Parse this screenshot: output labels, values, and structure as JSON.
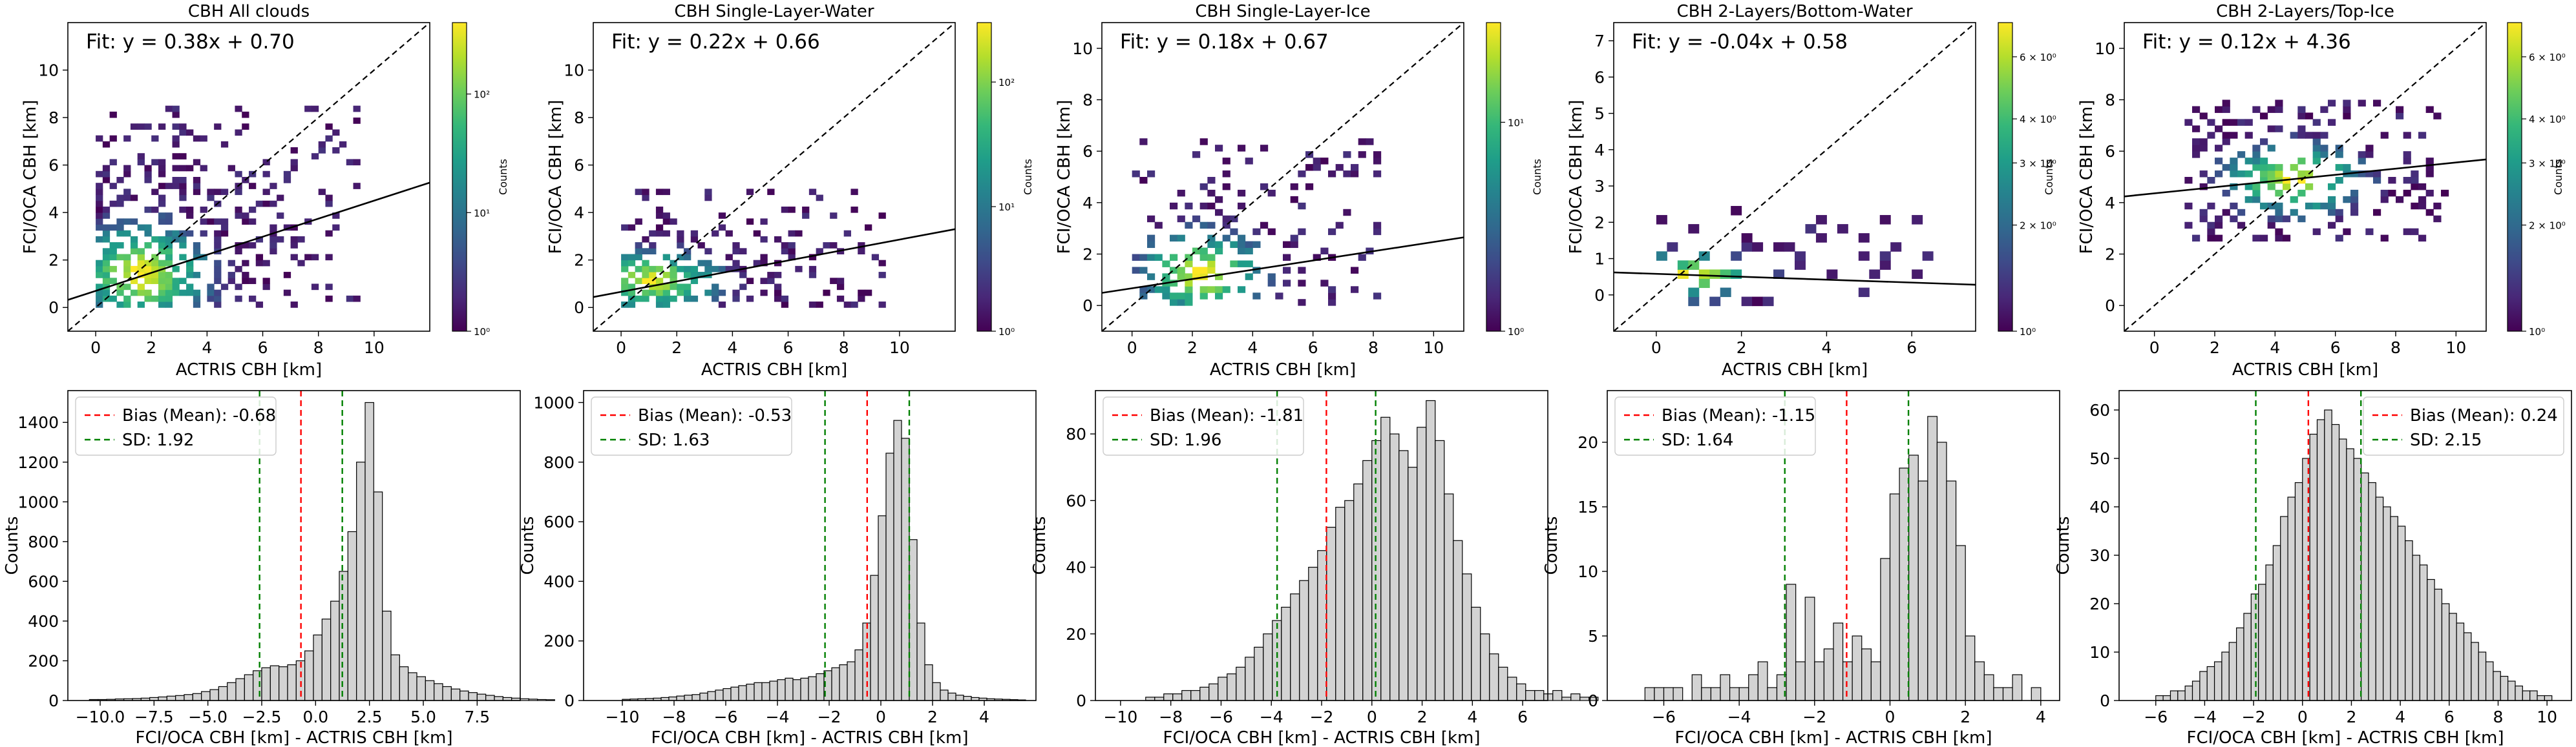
{
  "chart_data": [
    {
      "type": "heatmap",
      "title": "CBH All clouds",
      "xlabel": "ACTRIS CBH [km]",
      "ylabel": "FCI/OCA CBH [km]",
      "xlim": [
        -1,
        12
      ],
      "ylim": [
        -1,
        12
      ],
      "xticks": [
        0,
        2,
        4,
        6,
        8,
        10
      ],
      "yticks": [
        0,
        2,
        4,
        6,
        8,
        10
      ],
      "fit_label": "Fit: y = 0.38x + 0.70",
      "fit": {
        "slope": 0.38,
        "intercept": 0.7
      },
      "identity_line": true,
      "colorbar": {
        "label": "Counts",
        "scale": "log",
        "range": [
          1,
          400
        ],
        "ticks": [
          "10⁰",
          "10¹",
          "10²"
        ]
      },
      "density": {
        "x_range": [
          0,
          9.5
        ],
        "y_range": [
          0,
          8.3
        ],
        "x_center": 1.5,
        "y_center": 1.3,
        "coverage": 0.85
      }
    },
    {
      "type": "heatmap",
      "title": "CBH Single-Layer-Water",
      "xlabel": "ACTRIS CBH [km]",
      "ylabel": "FCI/OCA CBH [km]",
      "xlim": [
        -1,
        12
      ],
      "ylim": [
        -1,
        12
      ],
      "xticks": [
        0,
        2,
        4,
        6,
        8,
        10
      ],
      "yticks": [
        0,
        2,
        4,
        6,
        8,
        10
      ],
      "fit_label": "Fit: y = 0.22x + 0.66",
      "fit": {
        "slope": 0.22,
        "intercept": 0.66
      },
      "identity_line": true,
      "colorbar": {
        "label": "Counts",
        "scale": "log",
        "range": [
          1,
          300
        ],
        "ticks": [
          "10⁰",
          "10¹",
          "10²"
        ]
      },
      "density": {
        "x_range": [
          0,
          9.5
        ],
        "y_range": [
          0,
          4.8
        ],
        "x_center": 1.0,
        "y_center": 1.0,
        "coverage": 0.7
      }
    },
    {
      "type": "heatmap",
      "title": "CBH Single-Layer-Ice",
      "xlabel": "ACTRIS CBH [km]",
      "ylabel": "FCI/OCA CBH [km]",
      "xlim": [
        -1,
        11
      ],
      "ylim": [
        -1,
        11
      ],
      "xticks": [
        0,
        2,
        4,
        6,
        8,
        10
      ],
      "yticks": [
        0,
        2,
        4,
        6,
        8,
        10
      ],
      "fit_label": "Fit: y = 0.18x + 0.67",
      "fit": {
        "slope": 0.18,
        "intercept": 0.67
      },
      "identity_line": true,
      "colorbar": {
        "label": "Counts",
        "scale": "log",
        "range": [
          1,
          30
        ],
        "ticks": [
          "10⁰",
          "10¹"
        ]
      },
      "density": {
        "x_range": [
          0,
          8.2
        ],
        "y_range": [
          0,
          6.5
        ],
        "x_center": 2.2,
        "y_center": 1.1,
        "coverage": 0.55
      }
    },
    {
      "type": "heatmap",
      "title": "CBH 2-Layers/Bottom-Water",
      "xlabel": "ACTRIS CBH [km]",
      "ylabel": "FCI/OCA CBH [km]",
      "xlim": [
        -1,
        7.5
      ],
      "ylim": [
        -1,
        7.5
      ],
      "xticks": [
        0,
        2,
        4,
        6
      ],
      "yticks": [
        0,
        1,
        2,
        3,
        4,
        5,
        6,
        7
      ],
      "fit_label": "Fit: y = -0.04x + 0.58",
      "fit": {
        "slope": -0.04,
        "intercept": 0.58
      },
      "identity_line": true,
      "colorbar": {
        "label": "Counts",
        "scale": "log",
        "range": [
          1,
          7.5
        ],
        "ticks": [
          "10⁰",
          "2 × 10⁰",
          "3 × 10⁰",
          "4 × 10⁰",
          "6 × 10⁰"
        ]
      },
      "density": {
        "x_range": [
          0,
          6.5
        ],
        "y_range": [
          -0.3,
          2.3
        ],
        "x_center": 0.6,
        "y_center": 0.4,
        "coverage": 0.35
      }
    },
    {
      "type": "heatmap",
      "title": "CBH 2-Layers/Top-Ice",
      "xlabel": "ACTRIS CBH [km]",
      "ylabel": "FCI/OCA CBH [km]",
      "xlim": [
        -1,
        11
      ],
      "ylim": [
        -1,
        11
      ],
      "xticks": [
        0,
        2,
        4,
        6,
        8,
        10
      ],
      "yticks": [
        0,
        2,
        4,
        6,
        8,
        10
      ],
      "fit_label": "Fit: y = 0.12x + 4.36",
      "fit": {
        "slope": 0.12,
        "intercept": 4.36
      },
      "identity_line": true,
      "colorbar": {
        "label": "Counts",
        "scale": "log",
        "range": [
          1,
          7.5
        ],
        "ticks": [
          "10⁰",
          "2 × 10⁰",
          "3 × 10⁰",
          "4 × 10⁰",
          "6 × 10⁰"
        ]
      },
      "density": {
        "x_range": [
          1,
          9.8
        ],
        "y_range": [
          2.5,
          7.8
        ],
        "x_center": 4.5,
        "y_center": 4.8,
        "coverage": 0.55
      }
    },
    {
      "type": "bar",
      "subtype": "histogram",
      "xlabel": "FCI/OCA CBH [km] - ACTRIS CBH [km]",
      "ylabel": "Counts",
      "xlim": [
        -11.5,
        9.5
      ],
      "ylim": [
        0,
        1560
      ],
      "xticks": [
        -10.0,
        -7.5,
        -5.0,
        -2.5,
        0.0,
        2.5,
        5.0,
        7.5
      ],
      "xtick_labels": [
        "−10.0",
        "−7.5",
        "−5.0",
        "−2.5",
        "0.0",
        "2.5",
        "5.0",
        "7.5"
      ],
      "yticks": [
        0,
        200,
        400,
        600,
        800,
        1000,
        1200,
        1400
      ],
      "legend": {
        "position": "top-left",
        "bias_label": "Bias (Mean): -0.68",
        "sd_label": "SD: 1.92"
      },
      "bias": -0.68,
      "sd_lines": [
        -2.6,
        1.24
      ],
      "bin_start": -10.5,
      "bin_width": 0.4,
      "counts": [
        5,
        5,
        6,
        8,
        9,
        10,
        12,
        15,
        18,
        22,
        25,
        30,
        35,
        45,
        55,
        70,
        90,
        110,
        130,
        150,
        165,
        175,
        170,
        180,
        200,
        250,
        330,
        410,
        500,
        650,
        850,
        1200,
        1500,
        1050,
        450,
        230,
        170,
        140,
        120,
        100,
        85,
        70,
        58,
        48,
        40,
        32,
        26,
        20,
        15,
        12,
        9,
        7,
        5,
        4
      ]
    },
    {
      "type": "bar",
      "subtype": "histogram",
      "xlabel": "FCI/OCA CBH [km] - ACTRIS CBH [km]",
      "ylabel": "Counts",
      "xlim": [
        -11.5,
        6
      ],
      "ylim": [
        0,
        1040
      ],
      "xticks": [
        -10,
        -8,
        -6,
        -4,
        -2,
        0,
        2,
        4
      ],
      "xtick_labels": [
        "−10",
        "−8",
        "−6",
        "−4",
        "−2",
        "0",
        "2",
        "4"
      ],
      "yticks": [
        0,
        200,
        400,
        600,
        800,
        1000
      ],
      "legend": {
        "position": "top-left",
        "bias_label": "Bias (Mean): -0.53",
        "sd_label": "SD: 1.63"
      },
      "bias": -0.53,
      "sd_lines": [
        -2.16,
        1.1
      ],
      "bin_start": -10,
      "bin_width": 0.3,
      "counts": [
        4,
        5,
        6,
        7,
        8,
        10,
        12,
        15,
        18,
        20,
        25,
        30,
        35,
        40,
        45,
        50,
        55,
        60,
        60,
        65,
        70,
        75,
        70,
        75,
        80,
        90,
        100,
        110,
        120,
        130,
        170,
        260,
        420,
        620,
        830,
        940,
        880,
        540,
        260,
        120,
        60,
        35,
        25,
        18,
        14,
        10,
        8,
        6,
        5,
        4,
        3,
        2
      ]
    },
    {
      "type": "bar",
      "subtype": "histogram",
      "xlabel": "FCI/OCA CBH [km] - ACTRIS CBH [km]",
      "ylabel": "Counts",
      "xlim": [
        -11,
        7
      ],
      "ylim": [
        0,
        93
      ],
      "xticks": [
        -10,
        -8,
        -6,
        -4,
        -2,
        0,
        2,
        4,
        6
      ],
      "xtick_labels": [
        "−10",
        "−8",
        "−6",
        "−4",
        "−2",
        "0",
        "2",
        "4",
        "6"
      ],
      "yticks": [
        0,
        20,
        40,
        60,
        80
      ],
      "legend": {
        "position": "top-left",
        "bias_label": "Bias (Mean): -1.81",
        "sd_label": "SD: 1.96"
      },
      "bias": -1.81,
      "sd_lines": [
        -3.77,
        0.15
      ],
      "bin_start": -9,
      "bin_width": 0.36,
      "counts": [
        1,
        1,
        2,
        2,
        3,
        3,
        4,
        5,
        7,
        8,
        10,
        13,
        16,
        20,
        24,
        28,
        32,
        36,
        40,
        45,
        52,
        58,
        60,
        65,
        72,
        78,
        85,
        80,
        75,
        70,
        82,
        90,
        78,
        62,
        48,
        38,
        28,
        20,
        14,
        10,
        7,
        5,
        3,
        3,
        2,
        3,
        1,
        2,
        1,
        1
      ]
    },
    {
      "type": "bar",
      "subtype": "histogram",
      "xlabel": "FCI/OCA CBH [km] - ACTRIS CBH [km]",
      "ylabel": "Counts",
      "xlim": [
        -7.5,
        4.5
      ],
      "ylim": [
        0,
        24
      ],
      "xticks": [
        -6,
        -4,
        -2,
        0,
        2,
        4
      ],
      "xtick_labels": [
        "−6",
        "−4",
        "−2",
        "0",
        "2",
        "4"
      ],
      "yticks": [
        0,
        5,
        10,
        15,
        20
      ],
      "legend": {
        "position": "top-left",
        "bias_label": "Bias (Mean): -1.15",
        "sd_label": "SD: 1.64"
      },
      "bias": -1.15,
      "sd_lines": [
        -2.79,
        0.49
      ],
      "bin_start": -6.5,
      "bin_width": 0.25,
      "counts": [
        1,
        1,
        1,
        1,
        0,
        2,
        1,
        1,
        2,
        1,
        1,
        2,
        3,
        1,
        2,
        9,
        3,
        8,
        3,
        4,
        6,
        3,
        5,
        4,
        3,
        11,
        16,
        18,
        19,
        17,
        22,
        20,
        17,
        12,
        5,
        3,
        2,
        1,
        1,
        2,
        0,
        1
      ]
    },
    {
      "type": "bar",
      "subtype": "histogram",
      "xlabel": "FCI/OCA CBH [km] - ACTRIS CBH [km]",
      "ylabel": "Counts",
      "xlim": [
        -7.5,
        11
      ],
      "ylim": [
        0,
        64
      ],
      "xticks": [
        -6,
        -4,
        -2,
        0,
        2,
        4,
        6,
        8,
        10
      ],
      "xtick_labels": [
        "−6",
        "−4",
        "−2",
        "0",
        "2",
        "4",
        "6",
        "8",
        "10"
      ],
      "yticks": [
        0,
        10,
        20,
        30,
        40,
        50,
        60
      ],
      "legend": {
        "position": "top-right",
        "bias_label": "Bias (Mean): 0.24",
        "sd_label": "SD: 2.15"
      },
      "bias": 0.24,
      "sd_lines": [
        -1.91,
        2.39
      ],
      "bin_start": -6,
      "bin_width": 0.3,
      "counts": [
        1,
        1,
        2,
        2,
        3,
        4,
        6,
        7,
        8,
        10,
        12,
        15,
        18,
        22,
        24,
        28,
        32,
        38,
        42,
        45,
        50,
        55,
        58,
        60,
        57,
        54,
        52,
        50,
        47,
        45,
        42,
        40,
        38,
        36,
        33,
        30,
        28,
        25,
        23,
        20,
        18,
        16,
        14,
        12,
        10,
        8,
        6,
        5,
        4,
        3,
        2,
        2,
        1,
        1
      ]
    }
  ]
}
